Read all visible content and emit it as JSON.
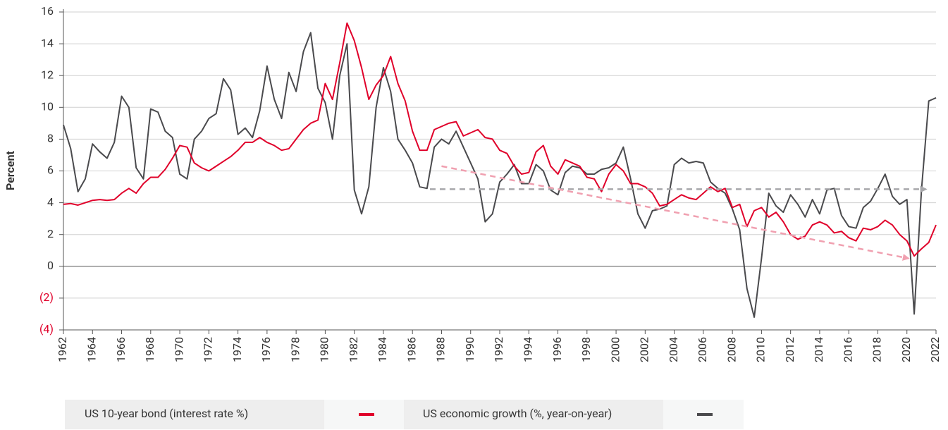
{
  "chart_data": {
    "type": "line",
    "y_label": "Percent",
    "x": [
      1962,
      1962.5,
      1963,
      1963.5,
      1964,
      1964.5,
      1965,
      1965.5,
      1966,
      1966.5,
      1967,
      1967.5,
      1968,
      1968.5,
      1969,
      1969.5,
      1970,
      1970.5,
      1971,
      1971.5,
      1972,
      1972.5,
      1973,
      1973.5,
      1974,
      1974.5,
      1975,
      1975.5,
      1976,
      1976.5,
      1977,
      1977.5,
      1978,
      1978.5,
      1979,
      1979.5,
      1980,
      1980.5,
      1981,
      1981.5,
      1982,
      1982.5,
      1983,
      1983.5,
      1984,
      1984.5,
      1985,
      1985.5,
      1986,
      1986.5,
      1987,
      1987.5,
      1988,
      1988.5,
      1989,
      1989.5,
      1990,
      1990.5,
      1991,
      1991.5,
      1992,
      1992.5,
      1993,
      1993.5,
      1994,
      1994.5,
      1995,
      1995.5,
      1996,
      1996.5,
      1997,
      1997.5,
      1998,
      1998.5,
      1999,
      1999.5,
      2000,
      2000.5,
      2001,
      2001.5,
      2002,
      2002.5,
      2003,
      2003.5,
      2004,
      2004.5,
      2005,
      2005.5,
      2006,
      2006.5,
      2007,
      2007.5,
      2008,
      2008.5,
      2009,
      2009.5,
      2010,
      2010.5,
      2011,
      2011.5,
      2012,
      2012.5,
      2013,
      2013.5,
      2014,
      2014.5,
      2015,
      2015.5,
      2016,
      2016.5,
      2017,
      2017.5,
      2018,
      2018.5,
      2019,
      2019.5,
      2020,
      2020.5,
      2021,
      2021.5,
      2022
    ],
    "series": [
      {
        "name": "US 10-year bond (interest rate %)",
        "color": "#e0002a",
        "values": [
          3.9,
          3.95,
          3.85,
          4.0,
          4.15,
          4.2,
          4.15,
          4.2,
          4.6,
          4.9,
          4.6,
          5.2,
          5.6,
          5.6,
          6.1,
          6.8,
          7.6,
          7.5,
          6.5,
          6.2,
          6.0,
          6.3,
          6.6,
          6.9,
          7.3,
          7.8,
          7.8,
          8.1,
          7.8,
          7.6,
          7.3,
          7.4,
          8.0,
          8.6,
          9.0,
          9.2,
          11.5,
          10.5,
          12.8,
          15.3,
          14.2,
          12.5,
          10.5,
          11.4,
          12.0,
          13.2,
          11.5,
          10.4,
          8.5,
          7.3,
          7.3,
          8.6,
          8.8,
          9.0,
          9.1,
          8.2,
          8.4,
          8.6,
          8.1,
          8.0,
          7.3,
          7.1,
          6.3,
          5.8,
          5.9,
          7.2,
          7.6,
          6.3,
          5.8,
          6.7,
          6.5,
          6.3,
          5.6,
          5.5,
          4.7,
          5.8,
          6.4,
          6.0,
          5.2,
          5.2,
          5.0,
          4.6,
          3.8,
          3.9,
          4.2,
          4.5,
          4.3,
          4.2,
          4.6,
          5.0,
          4.7,
          4.9,
          3.7,
          3.9,
          2.5,
          3.5,
          3.7,
          3.1,
          3.4,
          2.8,
          2.0,
          1.7,
          1.9,
          2.6,
          2.8,
          2.6,
          2.1,
          2.2,
          1.8,
          1.6,
          2.4,
          2.3,
          2.5,
          2.9,
          2.6,
          2.0,
          1.6,
          0.65,
          1.1,
          1.5,
          2.6
        ]
      },
      {
        "name": "US economic growth (%, year-on-year)",
        "color": "#4a4a4d",
        "values": [
          8.9,
          7.4,
          4.7,
          5.5,
          7.7,
          7.2,
          6.8,
          7.8,
          10.7,
          10.0,
          6.2,
          5.5,
          9.9,
          9.7,
          8.5,
          8.1,
          5.8,
          5.5,
          8.0,
          8.5,
          9.3,
          9.6,
          11.8,
          11.1,
          8.3,
          8.7,
          8.1,
          9.8,
          12.6,
          10.5,
          9.3,
          12.2,
          11.0,
          13.5,
          14.7,
          11.2,
          10.3,
          8.0,
          12.0,
          14.0,
          4.8,
          3.3,
          5.0,
          10.0,
          12.5,
          11.0,
          8.0,
          7.3,
          6.5,
          5.0,
          4.9,
          7.5,
          8.0,
          7.7,
          8.5,
          7.5,
          6.5,
          5.5,
          2.8,
          3.3,
          5.3,
          5.8,
          6.4,
          5.2,
          5.2,
          6.4,
          6.0,
          4.8,
          4.5,
          5.9,
          6.3,
          6.2,
          5.8,
          5.8,
          6.1,
          6.2,
          6.5,
          7.5,
          5.5,
          3.3,
          2.4,
          3.5,
          3.6,
          3.8,
          6.4,
          6.8,
          6.5,
          6.6,
          6.5,
          5.3,
          4.9,
          4.6,
          3.6,
          2.3,
          -1.4,
          -3.2,
          0.5,
          4.6,
          3.8,
          3.4,
          4.5,
          3.9,
          3.1,
          4.2,
          3.3,
          4.8,
          4.9,
          3.2,
          2.5,
          2.4,
          3.7,
          4.1,
          4.9,
          5.8,
          4.4,
          3.9,
          4.2,
          -3.0,
          4.8,
          10.4,
          10.6
        ]
      }
    ],
    "trend_lines": [
      {
        "color": "#a8a8ab",
        "x": [
          1987.2,
          2021.3
        ],
        "values": [
          4.85,
          4.85
        ]
      },
      {
        "color": "#f0a0b0",
        "x": [
          1988,
          2020.1
        ],
        "values": [
          6.3,
          0.5
        ]
      }
    ],
    "xlim": [
      1962,
      2022
    ],
    "xticks": [
      1962,
      1964,
      1966,
      1968,
      1970,
      1972,
      1974,
      1976,
      1978,
      1980,
      1982,
      1984,
      1986,
      1988,
      1990,
      1992,
      1994,
      1996,
      1998,
      2000,
      2002,
      2004,
      2006,
      2008,
      2010,
      2012,
      2014,
      2016,
      2018,
      2020,
      2022
    ],
    "ylim": [
      -4,
      16
    ],
    "yticks": [
      {
        "value": -4,
        "label": "(4)"
      },
      {
        "value": -2,
        "label": "(2)"
      },
      0,
      2,
      4,
      6,
      8,
      10,
      12,
      14,
      16
    ],
    "grid": true
  }
}
